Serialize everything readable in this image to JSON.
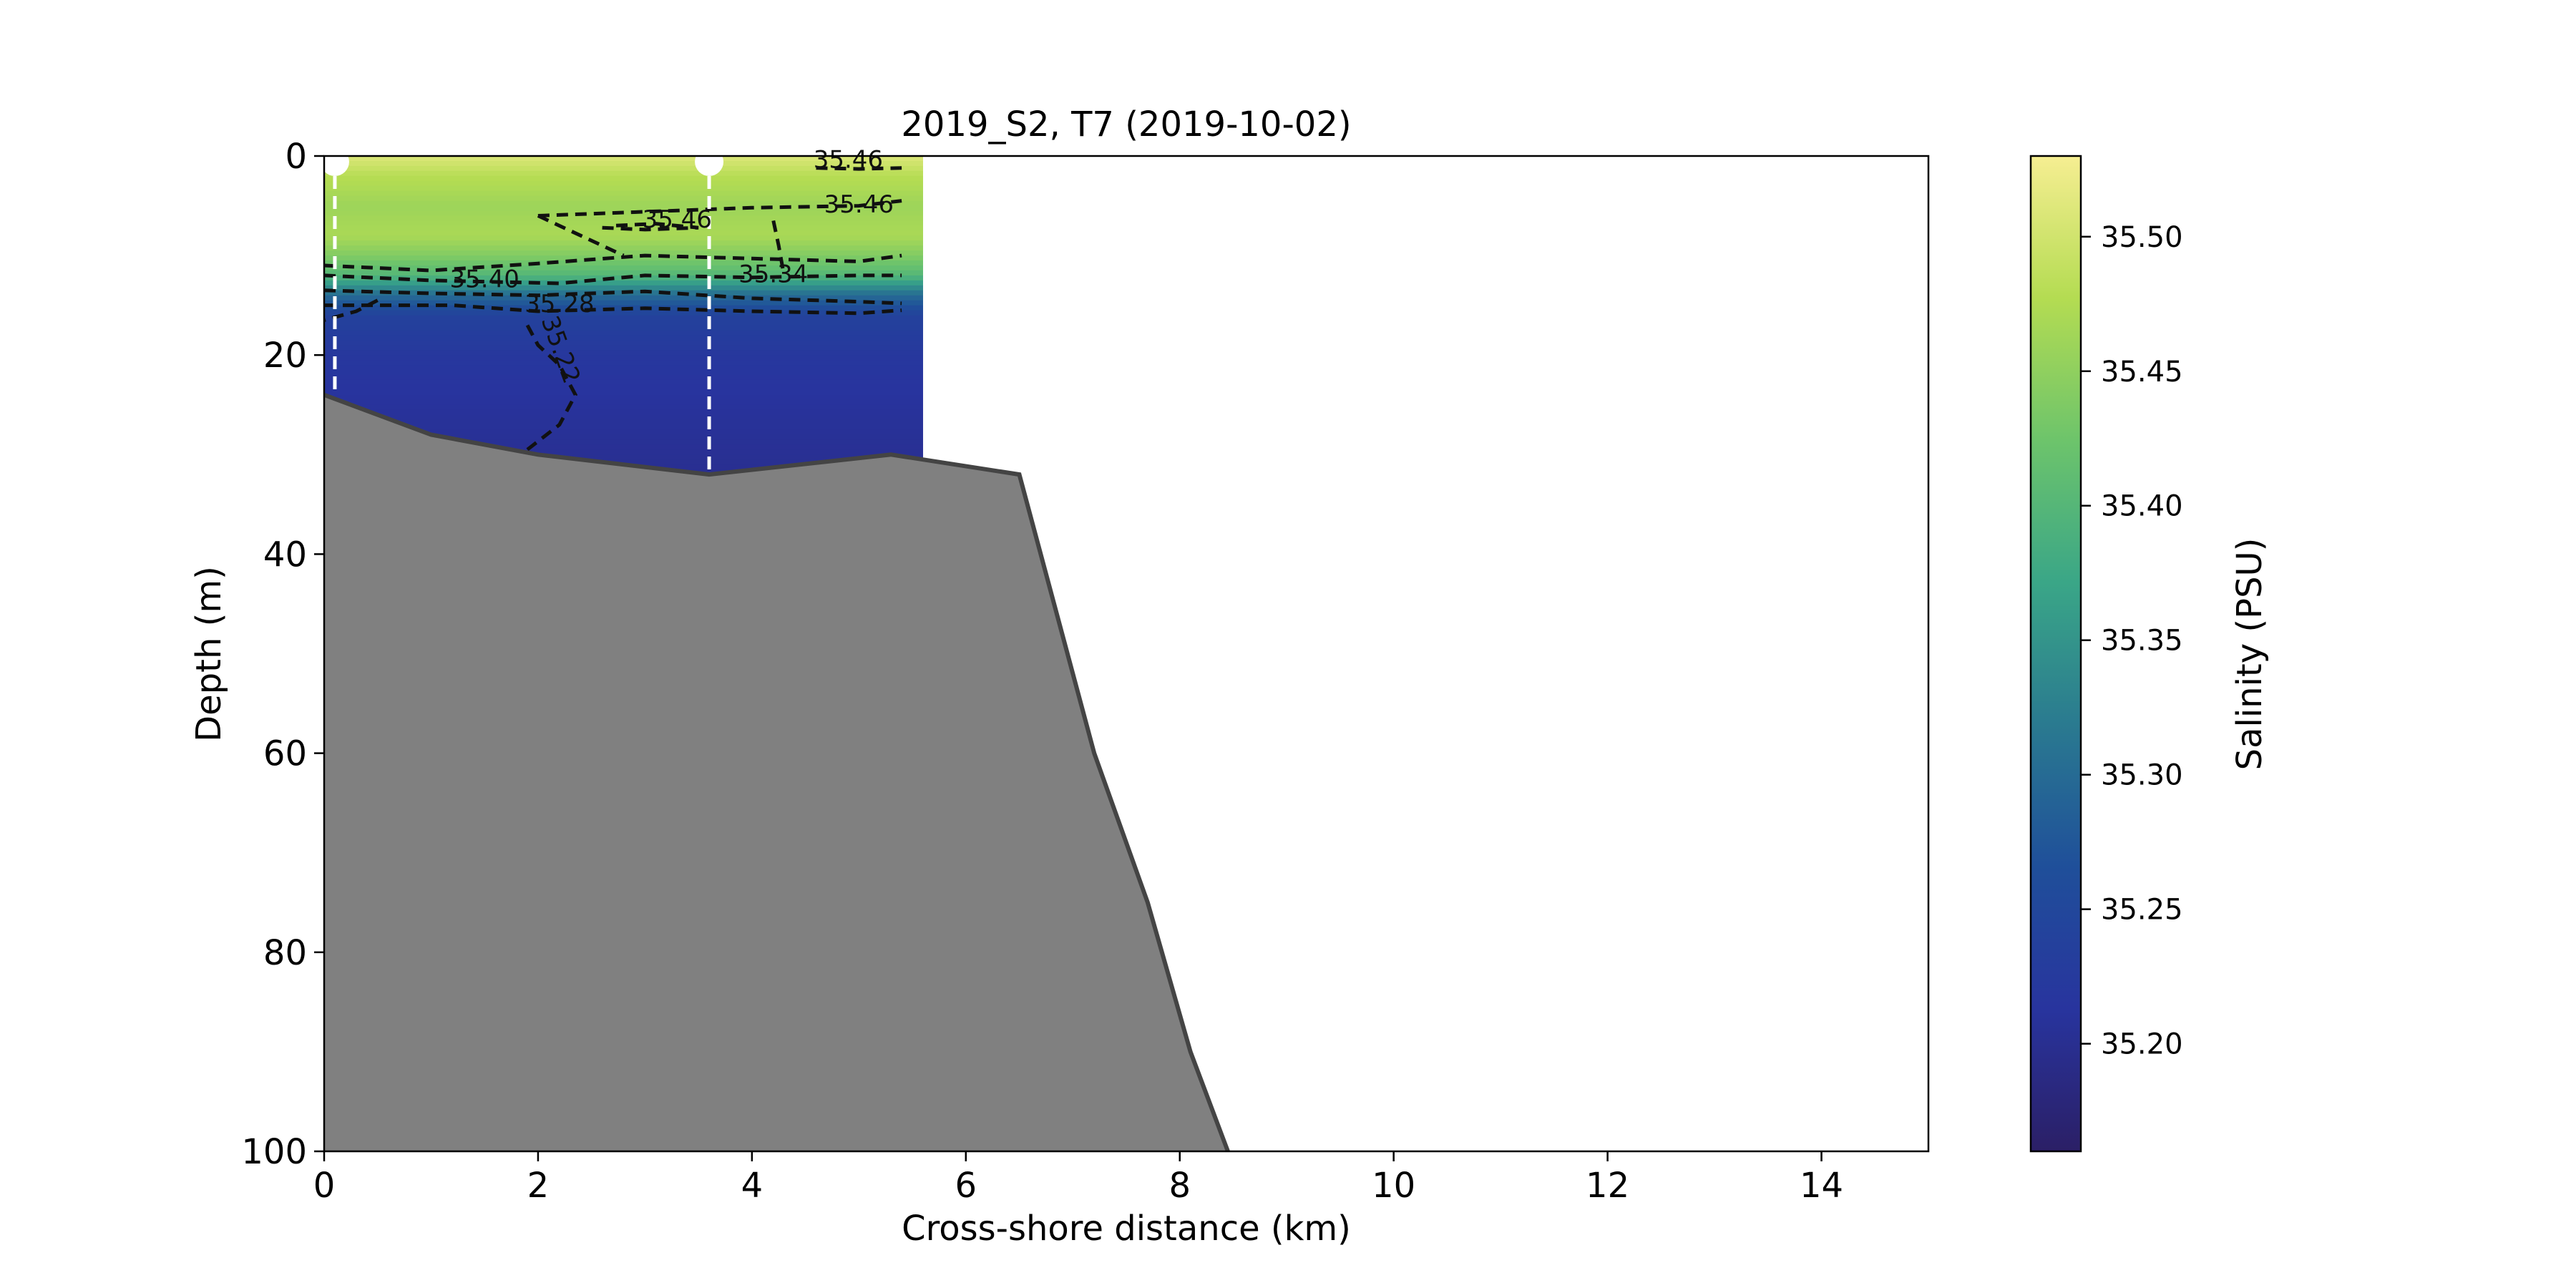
{
  "chart_data": {
    "type": "heatmap",
    "title": "2019_S2, T7 (2019-10-02)",
    "xlabel": "Cross-shore distance (km)",
    "ylabel": "Depth (m)",
    "xlim": [
      0,
      15
    ],
    "ylim": [
      100,
      0
    ],
    "y_inverted": true,
    "xticks": [
      0,
      2,
      4,
      6,
      8,
      10,
      12,
      14
    ],
    "yticks": [
      0,
      20,
      40,
      60,
      80,
      100
    ],
    "grid": false,
    "salinity_field": {
      "x_range_km": [
        0,
        5.6
      ],
      "depth_range_m": [
        0,
        32
      ],
      "profiles": [
        {
          "depth_m": 0,
          "salinity": 35.51
        },
        {
          "depth_m": 2,
          "salinity": 35.48
        },
        {
          "depth_m": 5,
          "salinity": 35.46
        },
        {
          "depth_m": 8,
          "salinity": 35.47
        },
        {
          "depth_m": 10,
          "salinity": 35.44
        },
        {
          "depth_m": 12,
          "salinity": 35.4
        },
        {
          "depth_m": 14,
          "salinity": 35.3
        },
        {
          "depth_m": 16,
          "salinity": 35.24
        },
        {
          "depth_m": 20,
          "salinity": 35.22
        },
        {
          "depth_m": 25,
          "salinity": 35.21
        },
        {
          "depth_m": 32,
          "salinity": 35.2
        }
      ]
    },
    "contour_labels": [
      {
        "text": "35.46",
        "x_km": 4.9,
        "depth_m": 0.5
      },
      {
        "text": "35.46",
        "x_km": 5.0,
        "depth_m": 5.0
      },
      {
        "text": "35.46",
        "x_km": 3.3,
        "depth_m": 6.5
      },
      {
        "text": "35.40",
        "x_km": 1.5,
        "depth_m": 12.5
      },
      {
        "text": "35.34",
        "x_km": 4.2,
        "depth_m": 12.0
      },
      {
        "text": "35.28",
        "x_km": 2.2,
        "depth_m": 15.0
      },
      {
        "text": "35.22",
        "x_km": 2.2,
        "depth_m": 19.5
      }
    ],
    "stations": [
      {
        "x_km": 0.1,
        "max_depth_m": 24
      },
      {
        "x_km": 3.6,
        "max_depth_m": 32
      }
    ],
    "bathymetry": {
      "x_km": [
        0,
        1.0,
        2.0,
        3.6,
        5.3,
        6.5,
        7.2,
        7.7,
        8.1,
        8.45
      ],
      "depth_m": [
        24,
        28,
        30,
        32,
        30,
        32,
        60,
        75,
        90,
        100
      ],
      "color": "#808080",
      "edge_color": "#444444"
    },
    "colorbar": {
      "label": "Salinity (PSU)",
      "range": [
        35.16,
        35.53
      ],
      "ticks": [
        35.2,
        35.25,
        35.3,
        35.35,
        35.4,
        35.45,
        35.5
      ],
      "tick_labels": [
        "35.20",
        "35.25",
        "35.30",
        "35.35",
        "35.40",
        "35.45",
        "35.50"
      ],
      "colormap": [
        "#2b1f66",
        "#28349e",
        "#1f4f9a",
        "#2a7a90",
        "#3aa687",
        "#6dc46b",
        "#b4dc52",
        "#f6ee92"
      ]
    }
  }
}
